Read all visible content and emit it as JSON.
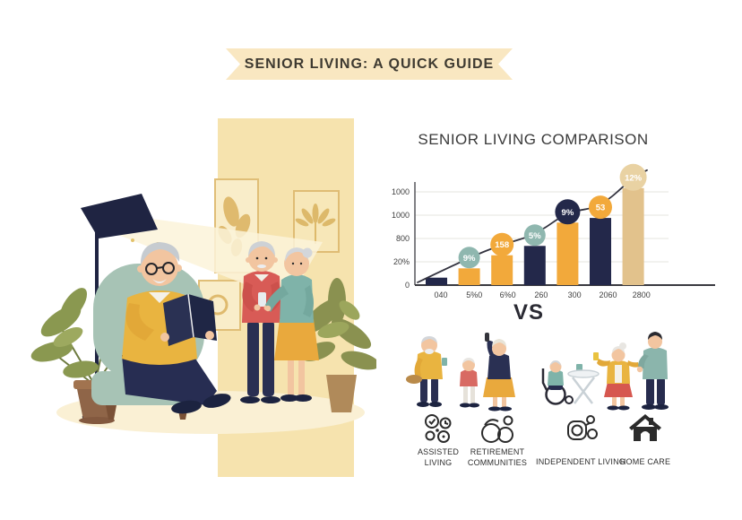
{
  "banner": {
    "title": "SENIOR LIVING: A QUICK GUIDE"
  },
  "chart_data": {
    "type": "bar",
    "title": "SENIOR LIVING COMPARISON",
    "categories": [
      "040",
      "5%0",
      "6%0",
      "260",
      "300",
      "2060",
      "2800"
    ],
    "values": [
      80,
      180,
      320,
      420,
      670,
      720,
      1040
    ],
    "bar_colors": [
      "navy",
      "orange",
      "orange",
      "navy",
      "orange",
      "navy",
      "tan"
    ],
    "y_ticks_bottom_to_top": [
      "0",
      "20%",
      "800",
      "1000",
      "1000"
    ],
    "line_badges": [
      {
        "label": "9%",
        "color": "teal"
      },
      {
        "label": "158",
        "color": "orange"
      },
      {
        "label": "5%",
        "color": "teal"
      },
      {
        "label": "9%",
        "color": "navy"
      },
      {
        "label": "53",
        "color": "orange"
      },
      {
        "label": "12%",
        "color": "tan"
      }
    ],
    "trend_line": true,
    "grid": "horizontal",
    "legend_position": "none"
  },
  "vs_label": "VS",
  "categories": [
    {
      "icon": "assisted-living-icon",
      "lines": [
        "ASSISTED",
        "LIVING"
      ]
    },
    {
      "icon": "retirement-communities-icon",
      "lines": [
        "RETIREMENT",
        "COMMUNITIES"
      ]
    },
    {
      "icon": "independent-living-icon",
      "lines": [
        "INDEPENDENT LIVING"
      ]
    },
    {
      "icon": "home-care-icon",
      "lines": [
        "HOME CARE"
      ]
    }
  ],
  "colors": {
    "navy": "#23284A",
    "orange": "#F2A93B",
    "tan": "#E2C28C",
    "teal": "#8FB7AF",
    "tan_badge": "#E9D2A3",
    "ribbon": "#F9E7C1",
    "panel": "#F6E3AE",
    "chart_line": "#33333F"
  }
}
